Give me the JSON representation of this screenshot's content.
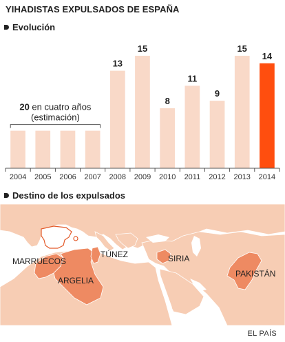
{
  "header": {
    "title": "YIHADISTAS EXPULSADOS DE ESPAÑA"
  },
  "sections": {
    "evolution": "Evolución",
    "destination": "Destino de los expulsados"
  },
  "chart_data": {
    "type": "bar",
    "categories": [
      "2004",
      "2005",
      "2006",
      "2007",
      "2008",
      "2009",
      "2010",
      "2011",
      "2012",
      "2013",
      "2014"
    ],
    "values": [
      null,
      null,
      null,
      null,
      13,
      15,
      8,
      11,
      9,
      15,
      14
    ],
    "value_labels": [
      "",
      "",
      "",
      "",
      "13",
      "15",
      "8",
      "11",
      "9",
      "15",
      "14"
    ],
    "estimated_group": {
      "categories": [
        "2004",
        "2005",
        "2006",
        "2007"
      ],
      "total_value": "20",
      "total_label": "en cuatro años",
      "note": "(estimación)",
      "per_bar_value": 5
    },
    "ylim": [
      0,
      16
    ],
    "title": "",
    "xlabel": "",
    "ylabel": "",
    "grid": false,
    "colors": {
      "bar": "#f9d9c8",
      "highlight": "#ff4e0f",
      "highlight_category": "2014",
      "axis": "#555555"
    }
  },
  "map": {
    "labels": {
      "morocco": "MARRUECOS",
      "algeria": "ARGELIA",
      "tunisia": "TÚNEZ",
      "syria": "SIRIA",
      "pakistan": "PAKISTÁN"
    },
    "colors": {
      "sea": "#ffffff",
      "land": "#f7cdb4",
      "destination": "#ee8a62",
      "spain_outline": "#e35a2a",
      "border": "#ffffff"
    }
  },
  "footer": {
    "credit": "EL PAÍS"
  }
}
